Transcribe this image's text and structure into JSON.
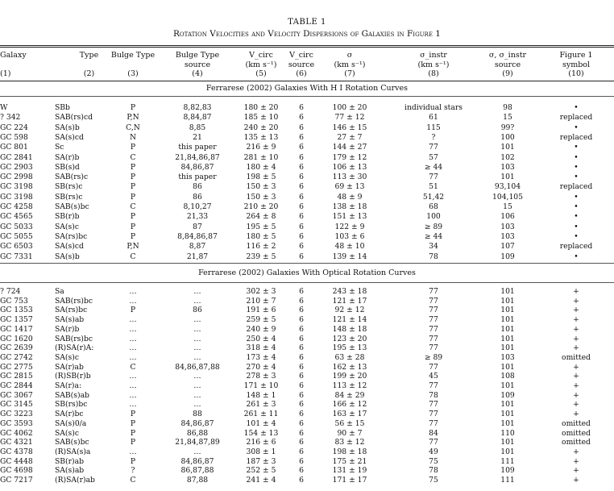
{
  "title_line1": "TABLE 1",
  "title_line2": "Rotation Velocities and Velocity Dispersions of Galaxies in Figure 1",
  "headers": [
    {
      "l1": "Galaxy",
      "l2": "",
      "l3": "(1)"
    },
    {
      "l1": "Type",
      "l2": "",
      "l3": "(2)"
    },
    {
      "l1": "Bulge Type",
      "l2": "",
      "l3": "(3)"
    },
    {
      "l1": "Bulge Type",
      "l2": "source",
      "l3": "(4)"
    },
    {
      "l1": "V_circ",
      "l2": "(km s⁻¹)",
      "l3": "(5)"
    },
    {
      "l1": "V_circ",
      "l2": "source",
      "l3": "(6)"
    },
    {
      "l1": "σ",
      "l2": "(km s⁻¹)",
      "l3": "(7)"
    },
    {
      "l1": "σ_instr",
      "l2": "(km s⁻¹)",
      "l3": "(8)"
    },
    {
      "l1": "σ, σ_instr",
      "l2": "source",
      "l3": "(9)"
    },
    {
      "l1": "Figure 1",
      "l2": "symbol",
      "l3": "(10)"
    }
  ],
  "section1_title": "Ferrarese (2002) Galaxies With H I Rotation Curves",
  "section2_title": "Ferrarese (2002) Galaxies With Optical Rotation Curves",
  "section1_rows": [
    [
      "W",
      "SBb",
      "P",
      "8,82,83",
      "180 ± 20",
      "6",
      "100 ± 20",
      "individual stars",
      "98",
      "•"
    ],
    [
      "? 342",
      "SAB(rs)cd",
      "P,N",
      "8,84,87",
      "185 ± 10",
      "6",
      "77 ± 12",
      "61",
      "15",
      "replaced"
    ],
    [
      "GC 224",
      "SA(s)b",
      "C,N",
      "8,85",
      "240 ± 20",
      "6",
      "146 ± 15",
      "115",
      "99?",
      "•"
    ],
    [
      "GC 598",
      "SA(s)cd",
      "N",
      "21",
      "135 ± 13",
      "6",
      "27 ± 7",
      "?",
      "100",
      "replaced"
    ],
    [
      "GC 801",
      "Sc",
      "P",
      "this paper",
      "216 ± 9",
      "6",
      "144 ± 27",
      "77",
      "101",
      "•"
    ],
    [
      "GC 2841",
      "SA(r)b",
      "C",
      "21,84,86,87",
      "281 ± 10",
      "6",
      "179 ± 12",
      "57",
      "102",
      "•"
    ],
    [
      "GC 2903",
      "SB(s)d",
      "P",
      "84,86,87",
      "180 ± 4",
      "6",
      "106 ± 13",
      "≥ 44",
      "103",
      "•"
    ],
    [
      "GC 2998",
      "SAB(rs)c",
      "P",
      "this paper",
      "198 ± 5",
      "6",
      "113 ± 30",
      "77",
      "101",
      "•"
    ],
    [
      "GC 3198",
      "SB(rs)c",
      "P",
      "86",
      "150 ± 3",
      "6",
      "69 ± 13",
      "51",
      "93,104",
      "replaced"
    ],
    [
      "GC 3198",
      "SB(rs)c",
      "P",
      "86",
      "150 ± 3",
      "6",
      "48 ± 9",
      "51,42",
      "104,105",
      "•"
    ],
    [
      "GC 4258",
      "SAB(s)bc",
      "C",
      "8,10,27",
      "210 ± 20",
      "6",
      "138 ± 18",
      "68",
      "15",
      "•"
    ],
    [
      "GC 4565",
      "SB(r)b",
      "P",
      "21,33",
      "264 ± 8",
      "6",
      "151 ± 13",
      "100",
      "106",
      "•"
    ],
    [
      "GC 5033",
      "SA(s)c",
      "P",
      "87",
      "195 ± 5",
      "6",
      "122 ± 9",
      "≥ 89",
      "103",
      "•"
    ],
    [
      "GC 5055",
      "SA(rs)bc",
      "P",
      "8,84,86,87",
      "180 ± 5",
      "6",
      "103 ± 6",
      "≥ 44",
      "103",
      "•"
    ],
    [
      "GC 6503",
      "SA(s)cd",
      "P,N",
      "8,87",
      "116 ± 2",
      "6",
      "48 ± 10",
      "34",
      "107",
      "replaced"
    ],
    [
      "GC 7331",
      "SA(s)b",
      "C",
      "21,87",
      "239 ± 5",
      "6",
      "139 ± 14",
      "78",
      "109",
      "•"
    ]
  ],
  "section2_rows": [
    [
      "? 724",
      "Sa",
      "…",
      "…",
      "302 ± 3",
      "6",
      "243 ± 18",
      "77",
      "101",
      "+"
    ],
    [
      "GC 753",
      "SAB(rs)bc",
      "…",
      "…",
      "210 ± 7",
      "6",
      "121 ± 17",
      "77",
      "101",
      "+"
    ],
    [
      "GC 1353",
      "SA(rs)bc",
      "P",
      "86",
      "191 ± 6",
      "6",
      "92 ± 12",
      "77",
      "101",
      "+"
    ],
    [
      "GC 1357",
      "SA(s)ab",
      "…",
      "…",
      "259 ± 5",
      "6",
      "121 ± 14",
      "77",
      "101",
      "+"
    ],
    [
      "GC 1417",
      "SA(r)b",
      "…",
      "…",
      "240 ± 9",
      "6",
      "148 ± 18",
      "77",
      "101",
      "+"
    ],
    [
      "GC 1620",
      "SAB(rs)bc",
      "…",
      "…",
      "250 ± 4",
      "6",
      "123 ± 20",
      "77",
      "101",
      "+"
    ],
    [
      "GC 2639",
      "(R)SA(r)A:",
      "…",
      "…",
      "318 ± 4",
      "6",
      "195 ± 13",
      "77",
      "101",
      "+"
    ],
    [
      "GC 2742",
      "SA(s)c",
      "…",
      "…",
      "173 ± 4",
      "6",
      "63 ± 28",
      "≥ 89",
      "103",
      "omitted"
    ],
    [
      "GC 2775",
      "SA(r)ab",
      "C",
      "84,86,87,88",
      "270 ± 4",
      "6",
      "162 ± 13",
      "77",
      "101",
      "+"
    ],
    [
      "GC 2815",
      "(R)SB(r)b",
      "…",
      "…",
      "278 ± 3",
      "6",
      "199 ± 20",
      "45",
      "108",
      "+"
    ],
    [
      "GC 2844",
      "SA(r)a:",
      "…",
      "…",
      "171 ± 10",
      "6",
      "113 ± 12",
      "77",
      "101",
      "+"
    ],
    [
      "GC 3067",
      "SAB(s)ab",
      "…",
      "…",
      "148 ± 1",
      "6",
      "84 ± 29",
      "78",
      "109",
      "+"
    ],
    [
      "GC 3145",
      "SB(rs)bc",
      "…",
      "…",
      "261 ± 3",
      "6",
      "166 ± 12",
      "77",
      "101",
      "+"
    ],
    [
      "GC 3223",
      "SA(r)bc",
      "P",
      "88",
      "261 ± 11",
      "6",
      "163 ± 17",
      "77",
      "101",
      "+"
    ],
    [
      "GC 3593",
      "SA(s)0/a",
      "P",
      "84,86,87",
      "101 ± 4",
      "6",
      "56 ± 15",
      "77",
      "101",
      "omitted"
    ],
    [
      "GC 4062",
      "SA(s)c",
      "P",
      "86,88",
      "154 ± 13",
      "6",
      "90 ± 7",
      "84",
      "110",
      "omitted"
    ],
    [
      "GC 4321",
      "SAB(s)bc",
      "P",
      "21,84,87,89",
      "216 ± 6",
      "6",
      "83 ± 12",
      "77",
      "101",
      "omitted"
    ],
    [
      "GC 4378",
      "(R)SA(s)a",
      "…",
      "…",
      "308 ± 1",
      "6",
      "198 ± 18",
      "49",
      "101",
      "+"
    ],
    [
      "GC 4448",
      "SB(r)ab",
      "P",
      "84,86,87",
      "187 ± 3",
      "6",
      "175 ± 21",
      "75",
      "111",
      "+"
    ],
    [
      "GC 4698",
      "SA(s)ab",
      "?",
      "86,87,88",
      "252 ± 5",
      "6",
      "131 ± 19",
      "78",
      "109",
      "+"
    ],
    [
      "GC 7217",
      "(R)SA(r)ab",
      "C",
      "87,88",
      "241 ± 4",
      "6",
      "171 ± 17",
      "75",
      "111",
      "+"
    ]
  ]
}
